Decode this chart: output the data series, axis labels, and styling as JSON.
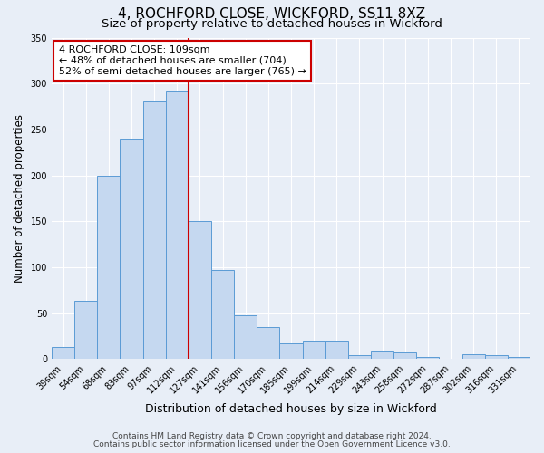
{
  "title": "4, ROCHFORD CLOSE, WICKFORD, SS11 8XZ",
  "subtitle": "Size of property relative to detached houses in Wickford",
  "xlabel": "Distribution of detached houses by size in Wickford",
  "ylabel": "Number of detached properties",
  "bar_labels": [
    "39sqm",
    "54sqm",
    "68sqm",
    "83sqm",
    "97sqm",
    "112sqm",
    "127sqm",
    "141sqm",
    "156sqm",
    "170sqm",
    "185sqm",
    "199sqm",
    "214sqm",
    "229sqm",
    "243sqm",
    "258sqm",
    "272sqm",
    "287sqm",
    "302sqm",
    "316sqm",
    "331sqm"
  ],
  "bar_values": [
    13,
    63,
    200,
    240,
    280,
    292,
    150,
    97,
    48,
    35,
    17,
    20,
    20,
    4,
    9,
    7,
    2,
    0,
    5,
    4,
    2
  ],
  "bar_color": "#c5d8f0",
  "bar_edge_color": "#5b9bd5",
  "vline_x_index": 5,
  "vline_color": "#cc0000",
  "annotation_line1": "4 ROCHFORD CLOSE: 109sqm",
  "annotation_line2": "← 48% of detached houses are smaller (704)",
  "annotation_line3": "52% of semi-detached houses are larger (765) →",
  "annotation_box_color": "#ffffff",
  "annotation_box_edge_color": "#cc0000",
  "ylim": [
    0,
    350
  ],
  "yticks": [
    0,
    50,
    100,
    150,
    200,
    250,
    300,
    350
  ],
  "footnote1": "Contains HM Land Registry data © Crown copyright and database right 2024.",
  "footnote2": "Contains public sector information licensed under the Open Government Licence v3.0.",
  "background_color": "#e8eef7",
  "grid_color": "#ffffff",
  "title_fontsize": 11,
  "subtitle_fontsize": 9.5,
  "xlabel_fontsize": 9,
  "ylabel_fontsize": 8.5,
  "tick_fontsize": 7,
  "annotation_fontsize": 8,
  "footnote_fontsize": 6.5
}
